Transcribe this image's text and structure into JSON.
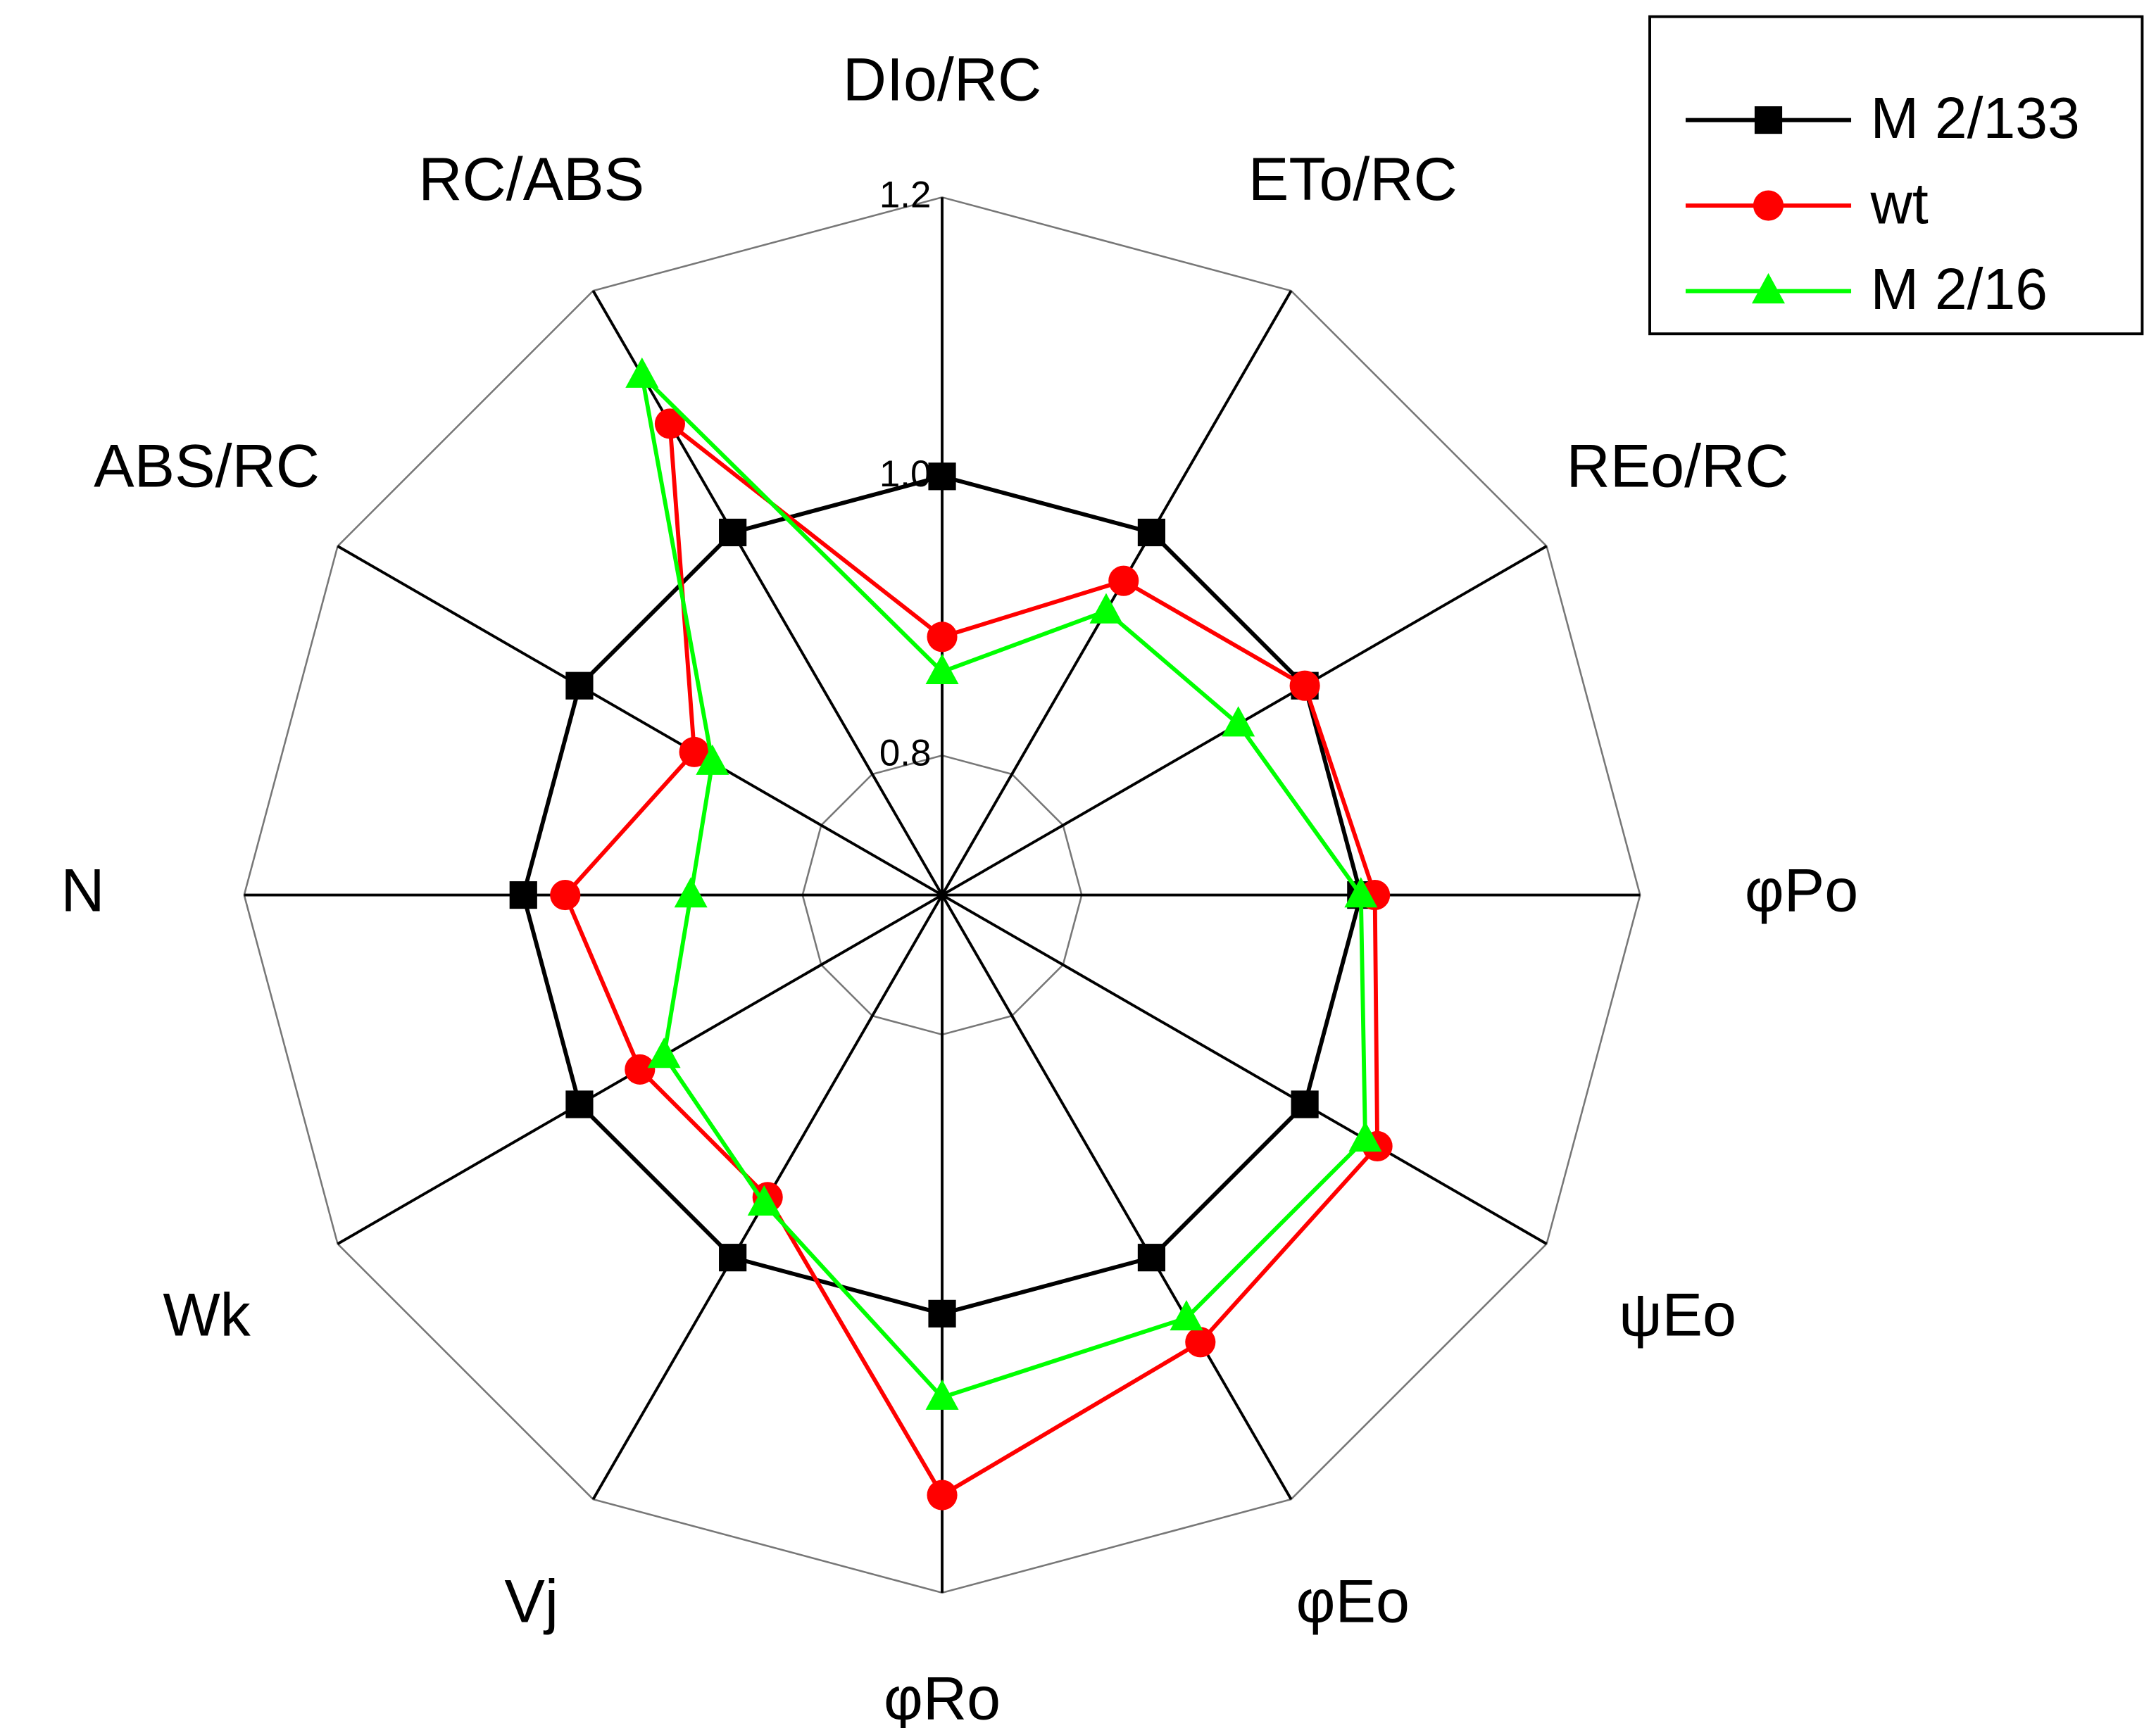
{
  "chart_data": {
    "type": "radar",
    "categories": [
      "DIo/RC",
      "ETo/RC",
      "REo/RC",
      "φPo",
      "ψEo",
      "φEo",
      "φRo",
      "Vj",
      "Wk",
      "N",
      "ABS/RC",
      "RC/ABS"
    ],
    "series": [
      {
        "name": "M 2/133",
        "color": "#000000",
        "marker": "square",
        "values": [
          1.0,
          1.0,
          1.0,
          1.0,
          1.0,
          1.0,
          1.0,
          1.0,
          1.0,
          1.0,
          1.0,
          1.0
        ]
      },
      {
        "name": "wt",
        "color": "#ff0000",
        "marker": "circle",
        "values": [
          0.885,
          0.96,
          1.0,
          1.01,
          1.06,
          1.07,
          1.13,
          0.95,
          0.95,
          0.97,
          0.905,
          1.09
        ]
      },
      {
        "name": "M 2/16",
        "color": "#00ff00",
        "marker": "triangle",
        "values": [
          0.86,
          0.935,
          0.945,
          1.0,
          1.05,
          1.05,
          1.06,
          0.955,
          0.93,
          0.88,
          0.89,
          1.13
        ]
      }
    ],
    "rlim": [
      0.7,
      1.2
    ],
    "rticks": [
      0.8,
      {
        "value": 1.0,
        "label": "1.0"
      },
      1.2
    ],
    "grid": true,
    "legend": "upper right"
  }
}
